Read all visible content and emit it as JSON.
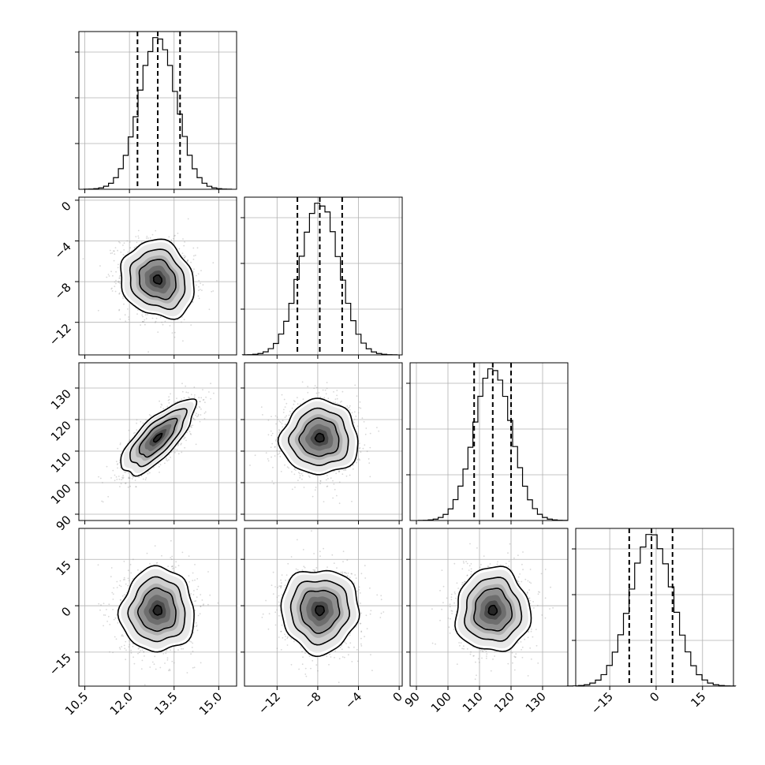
{
  "chart_data": {
    "type": "corner",
    "title": "",
    "grid": true,
    "parameters": [
      {
        "label": "",
        "range": [
          10.3,
          15.6
        ],
        "ticks": [
          10.5,
          12.0,
          13.5,
          15.0
        ],
        "tick_labels": [
          "10.5",
          "12.0",
          "13.5",
          "15.0"
        ],
        "mean": 12.95,
        "sd": 0.62,
        "quantiles": [
          12.27,
          12.95,
          13.7
        ]
      },
      {
        "label": "",
        "range": [
          -15.2,
          0.3
        ],
        "ticks": [
          -12,
          -8,
          -4,
          0
        ],
        "tick_labels": [
          "−12",
          "−8",
          "−4",
          "0"
        ],
        "mean": -7.8,
        "sd": 1.9,
        "quantiles": [
          -10.0,
          -7.8,
          -5.6
        ]
      },
      {
        "label": "",
        "range": [
          88,
          138
        ],
        "ticks": [
          90,
          100,
          110,
          120,
          130
        ],
        "tick_labels": [
          "90",
          "100",
          "110",
          "120",
          "130"
        ],
        "mean": 114.2,
        "sd": 5.9,
        "quantiles": [
          108.3,
          114.2,
          120.0
        ]
      },
      {
        "label": "",
        "range": [
          -26,
          25
        ],
        "ticks": [
          -15,
          0,
          15
        ],
        "tick_labels": [
          "−15",
          "0",
          "15"
        ],
        "mean": -1.5,
        "sd": 6.8,
        "quantiles": [
          -8.7,
          -1.5,
          5.3
        ]
      }
    ],
    "correlations": [
      [
        1.0,
        -0.15,
        0.75,
        0.0
      ],
      [
        -0.15,
        1.0,
        0.0,
        0.0
      ],
      [
        0.75,
        0.0,
        1.0,
        0.0
      ],
      [
        0.0,
        0.0,
        0.0,
        1.0
      ]
    ],
    "contour_levels_sigma": [
      0.5,
      1.0,
      1.5,
      2.0
    ]
  }
}
